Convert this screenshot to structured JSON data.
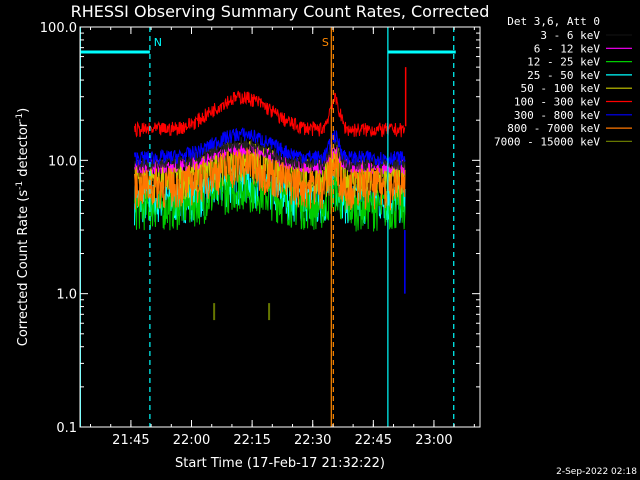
{
  "chart_data": {
    "type": "line",
    "title": "RHESSI Observing Summary Count Rates, Corrected",
    "xlabel": "Start Time (17-Feb-17 21:32:22)",
    "ylabel_main": "Corrected Count Rate (s",
    "ylabel_sup1": "-1",
    "ylabel_mid": " detector",
    "ylabel_sup2": "-1",
    "ylabel_end": ")",
    "yscale": "log",
    "ylim": [
      0.1,
      100.0
    ],
    "xlim_minutes": [
      0,
      99
    ],
    "x_ticks": [
      {
        "label": "21:45",
        "minute": 12.6
      },
      {
        "label": "22:00",
        "minute": 27.6
      },
      {
        "label": "22:15",
        "minute": 42.6
      },
      {
        "label": "22:30",
        "minute": 57.6
      },
      {
        "label": "22:45",
        "minute": 72.6
      },
      {
        "label": "23:00",
        "minute": 87.6
      }
    ],
    "y_ticks": [
      {
        "label": "100.0",
        "value": 100
      },
      {
        "label": "10.0",
        "value": 10
      },
      {
        "label": "1.0",
        "value": 1
      },
      {
        "label": "0.1",
        "value": 0.1
      }
    ],
    "legend_header": "Det 3,6, Att 0",
    "series": [
      {
        "name": "3 - 6 keV",
        "color": "#000000",
        "level": 9.5,
        "peak": 1.4
      },
      {
        "name": "6 - 12 keV",
        "color": "#ff00ff",
        "level": 9.0,
        "peak": 1.35
      },
      {
        "name": "12 - 25 keV",
        "color": "#00cc00",
        "level": 4.5,
        "peak": 1.4
      },
      {
        "name": "25 - 50 keV",
        "color": "#00ffff",
        "level": 5.0,
        "peak": 1.4
      },
      {
        "name": "50 - 100 keV",
        "color": "#cccc00",
        "level": 7.5,
        "peak": 1.4
      },
      {
        "name": "100 - 300 keV",
        "color": "#ff0000",
        "level": 17,
        "peak": 1.75
      },
      {
        "name": "300 - 800 keV",
        "color": "#0000ff",
        "level": 10.5,
        "peak": 1.5
      },
      {
        "name": "800 - 7000 keV",
        "color": "#ff7700",
        "level": 6.5,
        "peak": 1.45
      },
      {
        "name": "7000 - 15000 keV",
        "color": "#667700",
        "level": 0.72,
        "peak": 1.0
      }
    ],
    "data_span_minutes": [
      13.5,
      80.5
    ],
    "markers": [
      {
        "label": "N",
        "color": "#00ffff",
        "style": "dashed",
        "minute": 17.3
      },
      {
        "label": "S",
        "color": "#ff8800",
        "style": "dashed",
        "minute": 62.7
      },
      {
        "label": "",
        "color": "#00ffff",
        "style": "dashed",
        "minute": 92.5
      }
    ],
    "solid_lines": [
      {
        "color": "#00ffff",
        "minute": 0.1
      },
      {
        "color": "#00ffff",
        "minute": 76.2
      },
      {
        "color": "#ff8800",
        "minute": 62.2
      }
    ],
    "night_bars": [
      {
        "color": "#00ffff",
        "from_minute": 0,
        "to_minute": 17.3,
        "value": 65
      },
      {
        "color": "#00ffff",
        "from_minute": 76.2,
        "to_minute": 93,
        "value": 65
      }
    ],
    "spike_ticks": [
      {
        "color": "#667700",
        "minute": 33.2,
        "value": 0.72
      },
      {
        "color": "#667700",
        "minute": 46.8,
        "value": 0.72
      }
    ],
    "timestamp": "2-Sep-2022 02:18"
  }
}
